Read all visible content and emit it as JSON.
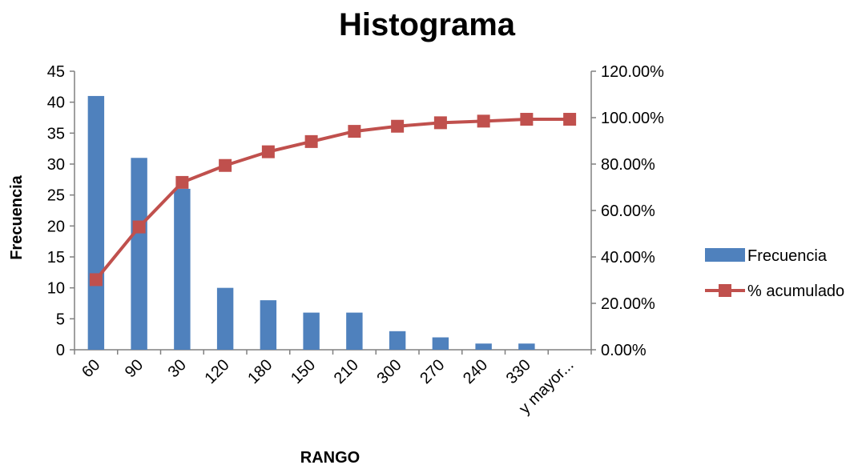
{
  "chart_data": {
    "type": "bar",
    "title": "Histograma",
    "xlabel": "RANGO",
    "ylabel": "Frecuencia",
    "categories": [
      "60",
      "90",
      "30",
      "120",
      "180",
      "150",
      "210",
      "300",
      "270",
      "240",
      "330",
      "y mayor..."
    ],
    "ylim": [
      0,
      45
    ],
    "y_ticks": [
      0,
      5,
      10,
      15,
      20,
      25,
      30,
      35,
      40,
      45
    ],
    "y2lim": [
      0,
      1.2
    ],
    "y2_ticks": [
      "0.00%",
      "20.00%",
      "40.00%",
      "60.00%",
      "80.00%",
      "100.00%",
      "120.00%"
    ],
    "grid": false,
    "legend": "right",
    "series": [
      {
        "name": "Frecuencia",
        "type": "bar",
        "axis": "left",
        "color": "#4F81BD",
        "values": [
          41,
          31,
          26,
          10,
          8,
          6,
          6,
          3,
          2,
          1,
          1,
          0
        ]
      },
      {
        "name": "% acumulado",
        "type": "line",
        "axis": "right",
        "color": "#C0504D",
        "marker": "square",
        "values": [
          0.302,
          0.529,
          0.721,
          0.794,
          0.853,
          0.897,
          0.941,
          0.963,
          0.978,
          0.985,
          0.993,
          0.993
        ]
      }
    ]
  }
}
